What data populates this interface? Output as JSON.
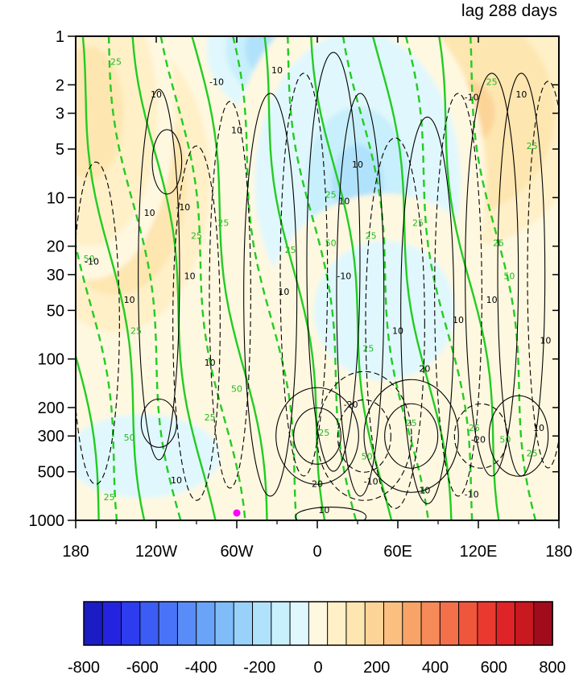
{
  "title_right": "lag 288 days",
  "chart_data": {
    "type": "heatmap",
    "title": "lag 288 days",
    "xlabel": "",
    "ylabel": "",
    "x_ticks": [
      "180",
      "120W",
      "60W",
      "0",
      "60E",
      "120E",
      "180"
    ],
    "x_tick_values": [
      -180,
      -120,
      -60,
      0,
      60,
      120,
      180
    ],
    "xlim": [
      -180,
      180
    ],
    "y_ticks": [
      "1",
      "2",
      "3",
      "5",
      "10",
      "20",
      "30",
      "50",
      "100",
      "200",
      "300",
      "500",
      "1000"
    ],
    "y_tick_values": [
      1,
      2,
      3,
      5,
      10,
      20,
      30,
      50,
      100,
      200,
      300,
      500,
      1000
    ],
    "ylim": [
      1000,
      1
    ],
    "y_scale": "log",
    "y_inverted": true,
    "colorbar": {
      "min": -800,
      "max": 800,
      "step": 50,
      "tick_labels": [
        "-800",
        "-600",
        "-400",
        "-200",
        "0",
        "200",
        "400",
        "600",
        "800"
      ],
      "tick_values": [
        -800,
        -600,
        -400,
        -200,
        0,
        200,
        400,
        600,
        800
      ],
      "colors": [
        "#1c1cc4",
        "#2424e0",
        "#2e3cf0",
        "#3b5cf5",
        "#4a74f7",
        "#5a8cf7",
        "#6aa4f8",
        "#80bcf9",
        "#98d2fa",
        "#b0e2fb",
        "#c8effc",
        "#e0f8fd",
        "#fff8e0",
        "#fff0c8",
        "#fde6b0",
        "#fcd498",
        "#fbc080",
        "#f8a468",
        "#f68a58",
        "#f4704a",
        "#f0563c",
        "#ea3a30",
        "#de2426",
        "#c81820",
        "#a00c1c"
      ]
    },
    "shading_fields": [
      {
        "lon": -150,
        "p": 8,
        "value": 260,
        "sx": 55,
        "sy": 2.2
      },
      {
        "lon": -170,
        "p": 3,
        "value": 160,
        "sx": 40,
        "sy": 2.0
      },
      {
        "lon": 150,
        "p": 1.2,
        "value": 420,
        "sx": 50,
        "sy": 1.3
      },
      {
        "lon": 110,
        "p": 3,
        "value": 220,
        "sx": 70,
        "sy": 2.0
      },
      {
        "lon": -25,
        "p": 1.2,
        "value": -260,
        "sx": 45,
        "sy": 1.4
      },
      {
        "lon": 30,
        "p": 8,
        "value": -200,
        "sx": 60,
        "sy": 2.2
      },
      {
        "lon": 50,
        "p": 50,
        "value": -70,
        "sx": 55,
        "sy": 1.6
      },
      {
        "lon": -130,
        "p": 400,
        "value": -60,
        "sx": 60,
        "sy": 1.3
      }
    ],
    "green_contour_labels": [
      {
        "text": "25",
        "lon": -150,
        "p": 1.5
      },
      {
        "text": "25",
        "lon": 130,
        "p": 2
      },
      {
        "text": "25",
        "lon": 160,
        "p": 5
      },
      {
        "text": "25",
        "lon": 10,
        "p": 10
      },
      {
        "text": "50",
        "lon": 10,
        "p": 20
      },
      {
        "text": "25",
        "lon": -90,
        "p": 18
      },
      {
        "text": "25",
        "lon": -70,
        "p": 15
      },
      {
        "text": "50",
        "lon": -170,
        "p": 25
      },
      {
        "text": "25",
        "lon": -20,
        "p": 22
      },
      {
        "text": "25",
        "lon": 40,
        "p": 18
      },
      {
        "text": "25",
        "lon": 75,
        "p": 15
      },
      {
        "text": "25",
        "lon": 135,
        "p": 20
      },
      {
        "text": "50",
        "lon": 143,
        "p": 32
      },
      {
        "text": "25",
        "lon": -135,
        "p": 70
      },
      {
        "text": "25",
        "lon": 38,
        "p": 90
      },
      {
        "text": "50",
        "lon": -60,
        "p": 160
      },
      {
        "text": "25",
        "lon": -80,
        "p": 240
      },
      {
        "text": "50",
        "lon": -140,
        "p": 320
      },
      {
        "text": "25",
        "lon": 5,
        "p": 300
      },
      {
        "text": "50",
        "lon": 37,
        "p": 420
      },
      {
        "text": "25",
        "lon": 70,
        "p": 260
      },
      {
        "text": "25",
        "lon": 117,
        "p": 280
      },
      {
        "text": "50",
        "lon": 140,
        "p": 330
      },
      {
        "text": "25",
        "lon": 160,
        "p": 400
      },
      {
        "text": "25",
        "lon": -155,
        "p": 750
      }
    ],
    "black_contour_labels": [
      {
        "text": "-10",
        "lon": -168,
        "p": 26
      },
      {
        "text": "10",
        "lon": -140,
        "p": 45
      },
      {
        "text": "10",
        "lon": -120,
        "p": 2.4
      },
      {
        "text": "10",
        "lon": -125,
        "p": 13
      },
      {
        "text": "-10",
        "lon": -100,
        "p": 12
      },
      {
        "text": "10",
        "lon": -95,
        "p": 32
      },
      {
        "text": "10",
        "lon": -80,
        "p": 110
      },
      {
        "text": "-10",
        "lon": -75,
        "p": 2
      },
      {
        "text": "10",
        "lon": -30,
        "p": 1.7
      },
      {
        "text": "10",
        "lon": -60,
        "p": 4
      },
      {
        "text": "10",
        "lon": -25,
        "p": 40
      },
      {
        "text": "10",
        "lon": 30,
        "p": 6.5
      },
      {
        "text": "10",
        "lon": 20,
        "p": 11
      },
      {
        "text": "-10",
        "lon": 20,
        "p": 32
      },
      {
        "text": "10",
        "lon": 60,
        "p": 70
      },
      {
        "text": "10",
        "lon": 105,
        "p": 60
      },
      {
        "text": "-10",
        "lon": 115,
        "p": 2.5
      },
      {
        "text": "10",
        "lon": 130,
        "p": 45
      },
      {
        "text": "10",
        "lon": 152,
        "p": 2.4
      },
      {
        "text": "10",
        "lon": 170,
        "p": 80
      },
      {
        "text": "20",
        "lon": 80,
        "p": 120
      },
      {
        "text": "-20",
        "lon": 25,
        "p": 200
      },
      {
        "text": "20",
        "lon": 0,
        "p": 620
      },
      {
        "text": "10",
        "lon": 5,
        "p": 900
      },
      {
        "text": "10",
        "lon": 80,
        "p": 680
      },
      {
        "text": "-10",
        "lon": 115,
        "p": 720
      },
      {
        "text": "-20",
        "lon": 120,
        "p": 330
      },
      {
        "text": "10",
        "lon": 165,
        "p": 280
      },
      {
        "text": "10",
        "lon": -105,
        "p": 590
      },
      {
        "text": "-10",
        "lon": 40,
        "p": 600
      }
    ],
    "marker": {
      "lon": -60,
      "p": 900,
      "color": "#ff00ff"
    }
  }
}
